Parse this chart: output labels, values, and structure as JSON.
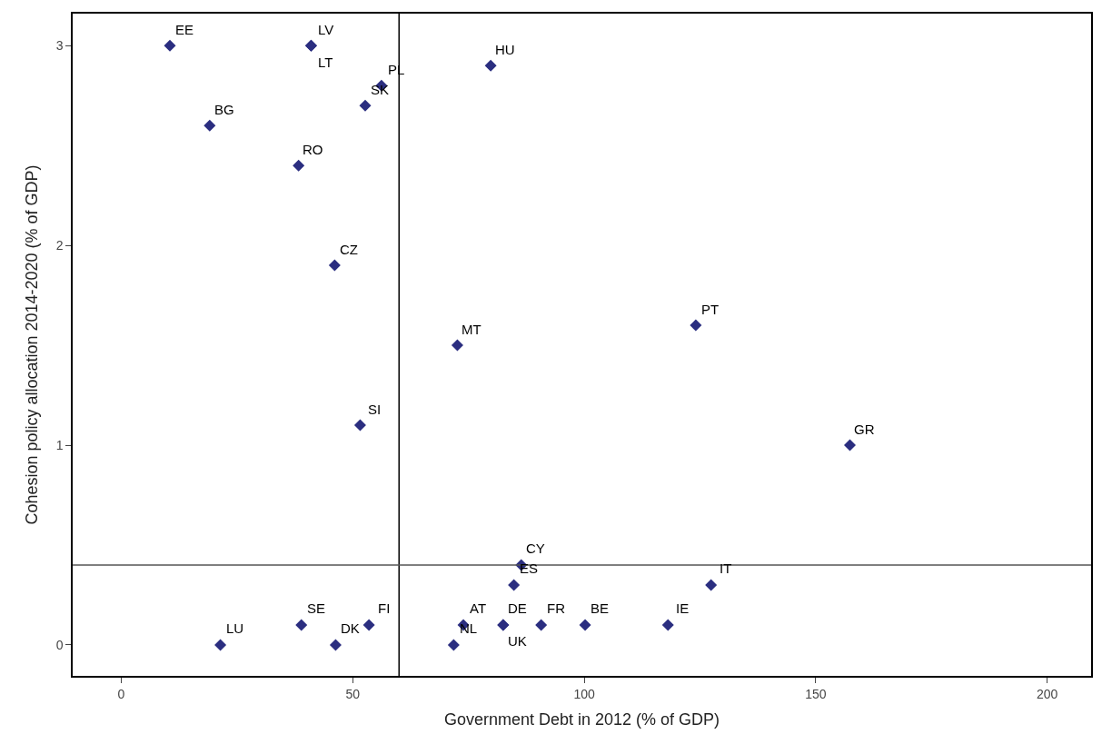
{
  "chart_data": {
    "type": "scatter",
    "xlabel": "Government Debt in 2012 (% of GDP)",
    "ylabel": "Cohesion policy allocation 2014-2020 (% of GDP)",
    "x": [
      10.5,
      41,
      41,
      56.2,
      52.7,
      19.1,
      38.3,
      46.1,
      51.6,
      79.8,
      72.6,
      124.1,
      157.4,
      86.4,
      84.8,
      127.4,
      73.9,
      82.5,
      82.5,
      90.7,
      100.2,
      118.1,
      71.8,
      38.9,
      53.5,
      21.4,
      46.3
    ],
    "series": [
      {
        "color": "#2b2e80",
        "values": [
          3.0,
          3.0,
          3.0,
          2.8,
          2.7,
          2.6,
          2.4,
          1.9,
          1.1,
          2.9,
          1.5,
          1.6,
          1.0,
          0.4,
          0.3,
          0.3,
          0.1,
          0.1,
          0.1,
          0.1,
          0.1,
          0.1,
          0.0,
          0.1,
          0.1,
          0.0,
          0.0
        ]
      }
    ],
    "annotations": [
      {
        "text": "EE",
        "x": 10.5,
        "y": 3.0
      },
      {
        "text": "LV",
        "x": 41,
        "y": 3.0
      },
      {
        "text": "LT",
        "x": 41,
        "y": 3.0
      },
      {
        "text": "PL",
        "x": 56.2,
        "y": 2.8
      },
      {
        "text": "SK",
        "x": 52.7,
        "y": 2.7
      },
      {
        "text": "BG",
        "x": 19.1,
        "y": 2.6
      },
      {
        "text": "RO",
        "x": 38.3,
        "y": 2.4
      },
      {
        "text": "CZ",
        "x": 46.1,
        "y": 1.9
      },
      {
        "text": "SI",
        "x": 51.6,
        "y": 1.1
      },
      {
        "text": "HU",
        "x": 79.8,
        "y": 2.9
      },
      {
        "text": "MT",
        "x": 72.6,
        "y": 1.5
      },
      {
        "text": "PT",
        "x": 124.1,
        "y": 1.6
      },
      {
        "text": "GR",
        "x": 157.4,
        "y": 1.0
      },
      {
        "text": "CY",
        "x": 86.4,
        "y": 0.4
      },
      {
        "text": "ES",
        "x": 84.8,
        "y": 0.3
      },
      {
        "text": "IT",
        "x": 127.4,
        "y": 0.3
      },
      {
        "text": "AT",
        "x": 73.9,
        "y": 0.1
      },
      {
        "text": "DE",
        "x": 82.5,
        "y": 0.1
      },
      {
        "text": "UK",
        "x": 82.5,
        "y": 0.1
      },
      {
        "text": "FR",
        "x": 90.7,
        "y": 0.1
      },
      {
        "text": "BE",
        "x": 100.2,
        "y": 0.1
      },
      {
        "text": "IE",
        "x": 118.1,
        "y": 0.1
      },
      {
        "text": "NL",
        "x": 71.8,
        "y": 0.0
      },
      {
        "text": "SE",
        "x": 38.9,
        "y": 0.1
      },
      {
        "text": "FI",
        "x": 53.5,
        "y": 0.1
      },
      {
        "text": "LU",
        "x": 21.4,
        "y": 0.0
      },
      {
        "text": "DK",
        "x": 46.3,
        "y": 0.0
      }
    ],
    "ref_lines": [
      {
        "axis": "x",
        "value": 60,
        "color": "#000000"
      },
      {
        "axis": "y",
        "value": 0.4,
        "color": "#555555"
      }
    ],
    "xlim": [
      -10.5,
      209.5
    ],
    "xticks": [
      0,
      50,
      100,
      150,
      200
    ],
    "ylim": [
      -0.155,
      3.16
    ],
    "yticks": [
      0,
      1,
      2,
      3
    ],
    "marker": "diamond",
    "legend": false
  }
}
